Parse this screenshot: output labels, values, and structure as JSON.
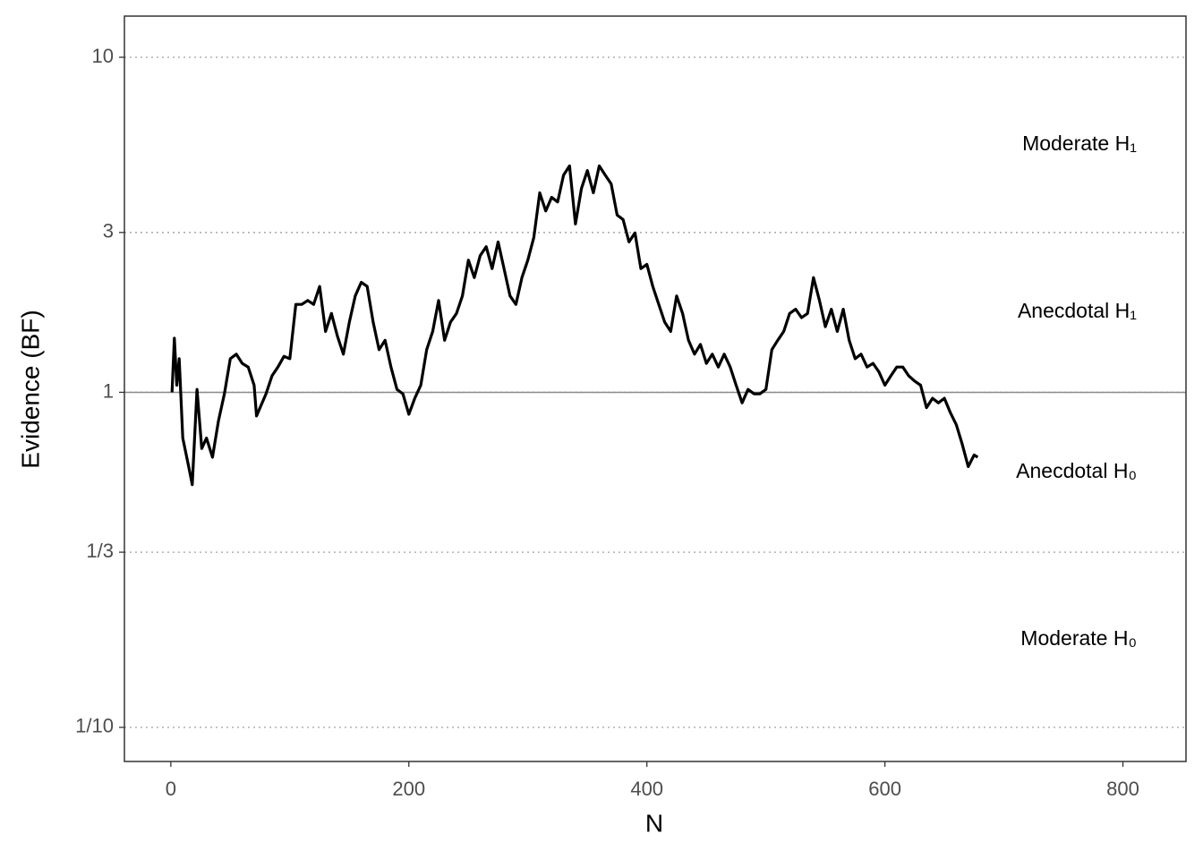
{
  "chart_data": {
    "type": "line",
    "x_label": "N",
    "y_label": "Evidence (BF)",
    "log_y": true,
    "grid": true,
    "hline": 1,
    "xlim": [
      -39,
      853
    ],
    "ylim": [
      0.0791,
      13.27
    ],
    "xticks": [
      0,
      200,
      400,
      600,
      800
    ],
    "yticks": [
      {
        "value": 0.1,
        "label": "1/10"
      },
      {
        "value": 0.3333,
        "label": "1/3"
      },
      1,
      3,
      10
    ],
    "annotations": [
      "Moderate H₀",
      "Anecdotal H₀",
      "Anecdotal H₁",
      "Moderate H₁"
    ],
    "series": [
      {
        "color": "#000000",
        "x": [
          1,
          3,
          5,
          7,
          10,
          15,
          18,
          22,
          26,
          30,
          35,
          40,
          45,
          50,
          55,
          60,
          65,
          70,
          72,
          80,
          85,
          90,
          95,
          100,
          105,
          110,
          115,
          120,
          125,
          130,
          135,
          140,
          145,
          150,
          155,
          160,
          165,
          170,
          175,
          180,
          185,
          190,
          195,
          200,
          205,
          210,
          215,
          220,
          225,
          230,
          235,
          240,
          245,
          250,
          255,
          260,
          265,
          270,
          275,
          280,
          285,
          290,
          295,
          300,
          305,
          310,
          315,
          320,
          325,
          330,
          335,
          340,
          345,
          350,
          355,
          360,
          365,
          370,
          375,
          380,
          385,
          390,
          395,
          400,
          405,
          410,
          415,
          420,
          425,
          430,
          435,
          440,
          445,
          450,
          455,
          460,
          465,
          470,
          475,
          480,
          485,
          490,
          495,
          500,
          505,
          510,
          515,
          520,
          525,
          530,
          535,
          540,
          545,
          550,
          555,
          560,
          565,
          570,
          575,
          580,
          585,
          590,
          595,
          600,
          605,
          610,
          615,
          620,
          625,
          630,
          635,
          640,
          645,
          650,
          655,
          660,
          665,
          670,
          675,
          678
        ],
        "values": [
          1.0,
          1.45,
          1.05,
          1.26,
          0.73,
          0.6,
          0.53,
          1.02,
          0.68,
          0.73,
          0.64,
          0.82,
          0.99,
          1.26,
          1.3,
          1.22,
          1.19,
          1.05,
          0.85,
          0.99,
          1.12,
          1.19,
          1.28,
          1.26,
          1.83,
          1.83,
          1.88,
          1.83,
          2.07,
          1.52,
          1.72,
          1.47,
          1.3,
          1.62,
          1.94,
          2.13,
          2.07,
          1.62,
          1.34,
          1.43,
          1.19,
          1.02,
          0.99,
          0.86,
          0.96,
          1.05,
          1.34,
          1.52,
          1.88,
          1.43,
          1.62,
          1.72,
          1.94,
          2.48,
          2.2,
          2.56,
          2.72,
          2.34,
          2.81,
          2.34,
          1.94,
          1.83,
          2.2,
          2.48,
          2.9,
          3.94,
          3.48,
          3.82,
          3.7,
          4.45,
          4.74,
          3.18,
          4.06,
          4.59,
          3.94,
          4.74,
          4.45,
          4.19,
          3.38,
          3.28,
          2.81,
          2.99,
          2.34,
          2.41,
          2.07,
          1.83,
          1.62,
          1.52,
          1.94,
          1.72,
          1.43,
          1.3,
          1.39,
          1.22,
          1.3,
          1.19,
          1.3,
          1.19,
          1.05,
          0.93,
          1.02,
          0.99,
          0.99,
          1.02,
          1.34,
          1.43,
          1.52,
          1.72,
          1.77,
          1.67,
          1.72,
          2.2,
          1.88,
          1.57,
          1.77,
          1.52,
          1.77,
          1.43,
          1.26,
          1.3,
          1.19,
          1.22,
          1.15,
          1.05,
          1.12,
          1.19,
          1.19,
          1.12,
          1.08,
          1.05,
          0.9,
          0.96,
          0.93,
          0.96,
          0.87,
          0.8,
          0.7,
          0.6,
          0.65,
          0.64
        ]
      }
    ]
  }
}
